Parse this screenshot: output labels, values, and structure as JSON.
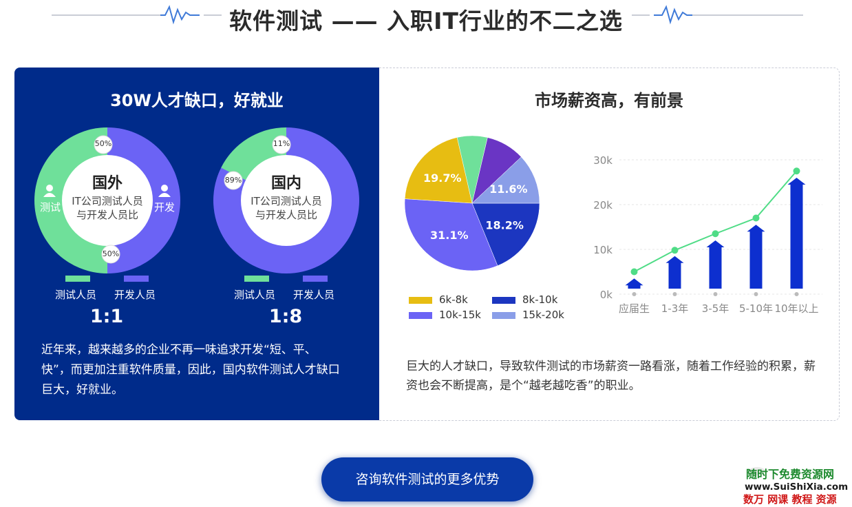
{
  "header": {
    "title": "软件测试 —— 入职IT行业的不二之选"
  },
  "left_panel": {
    "title": "30W人才缺口，好就业",
    "donuts": [
      {
        "center_title": "国外",
        "center_sub": "IT公司测试人员与开发人员比",
        "center_sub_1": "IT公司测试人员",
        "center_sub_2": "与开发人员比",
        "left_label": "测试",
        "right_label": "开发",
        "badge_top": "50%",
        "badge_bottom": "50%",
        "legend": [
          "测试人员",
          "开发人员"
        ],
        "ratio": "1:1"
      },
      {
        "center_title": "国内",
        "center_sub": "IT公司测试人员与开发人员比",
        "center_sub_1": "IT公司测试人员",
        "center_sub_2": "与开发人员比",
        "badge_top": "11%",
        "badge_left": "89%",
        "legend": [
          "测试人员",
          "开发人员"
        ],
        "ratio": "1:8"
      }
    ],
    "paragraph": "近年来，越来越多的企业不再一味追求开发“短、平、快”，而更加注重软件质量，因此，国内软件测试人才缺口巨大，好就业。"
  },
  "right_panel": {
    "title": "市场薪资高，有前景",
    "paragraph": "巨大的人才缺口，导致软件测试的市场薪资一路看涨，随着工作经验的积累，薪资也会不断提高，是个“越老越吃香”的职业。"
  },
  "chart_data": [
    {
      "type": "pie",
      "title": "国外",
      "labels": [
        "测试人员",
        "开发人员"
      ],
      "values": [
        50,
        50
      ],
      "colors": [
        "#6fe09a",
        "#6b63f5"
      ]
    },
    {
      "type": "pie",
      "title": "国内",
      "labels": [
        "测试人员",
        "开发人员"
      ],
      "values": [
        11,
        89
      ],
      "colors": [
        "#6fe09a",
        "#6b63f5"
      ]
    },
    {
      "type": "pie",
      "slices": [
        {
          "name": "8k-10k",
          "value": 18.2,
          "label": "18.2%",
          "color": "#1c36c0"
        },
        {
          "name": "10k-15k",
          "value": 31.1,
          "label": "31.1%",
          "color": "#6b63f5"
        },
        {
          "name": "6k-8k",
          "value": 19.7,
          "label": "19.7%",
          "color": "#e7bd12"
        },
        {
          "name": "",
          "value": 7.0,
          "label": "",
          "color": "#6fe09a"
        },
        {
          "name": "",
          "value": 9.0,
          "label": "",
          "color": "#6a35c4"
        },
        {
          "name": "15k-20k",
          "value": 11.6,
          "label": "11.6%",
          "color": "#8a9ee8"
        }
      ],
      "legend": [
        "6k-8k",
        "8k-10k",
        "10k-15k",
        "15k-20k"
      ],
      "legend_colors": [
        "#e7bd12",
        "#1c36c0",
        "#6b63f5",
        "#8a9ee8"
      ]
    },
    {
      "type": "bar",
      "categories": [
        "应届生",
        "1-3年",
        "3-5年",
        "5-10年",
        "10年以上"
      ],
      "values": [
        3500,
        8500,
        12000,
        15500,
        26000
      ],
      "line_values": [
        5000,
        9800,
        13500,
        17000,
        27500
      ],
      "yticks": [
        "0k",
        "10k",
        "20k",
        "30k"
      ],
      "ytick_values": [
        0,
        10000,
        20000,
        30000
      ],
      "ylim": [
        0,
        30000
      ],
      "bar_color": "#0d2fcf",
      "line_color": "#4fdc86"
    }
  ]
}
